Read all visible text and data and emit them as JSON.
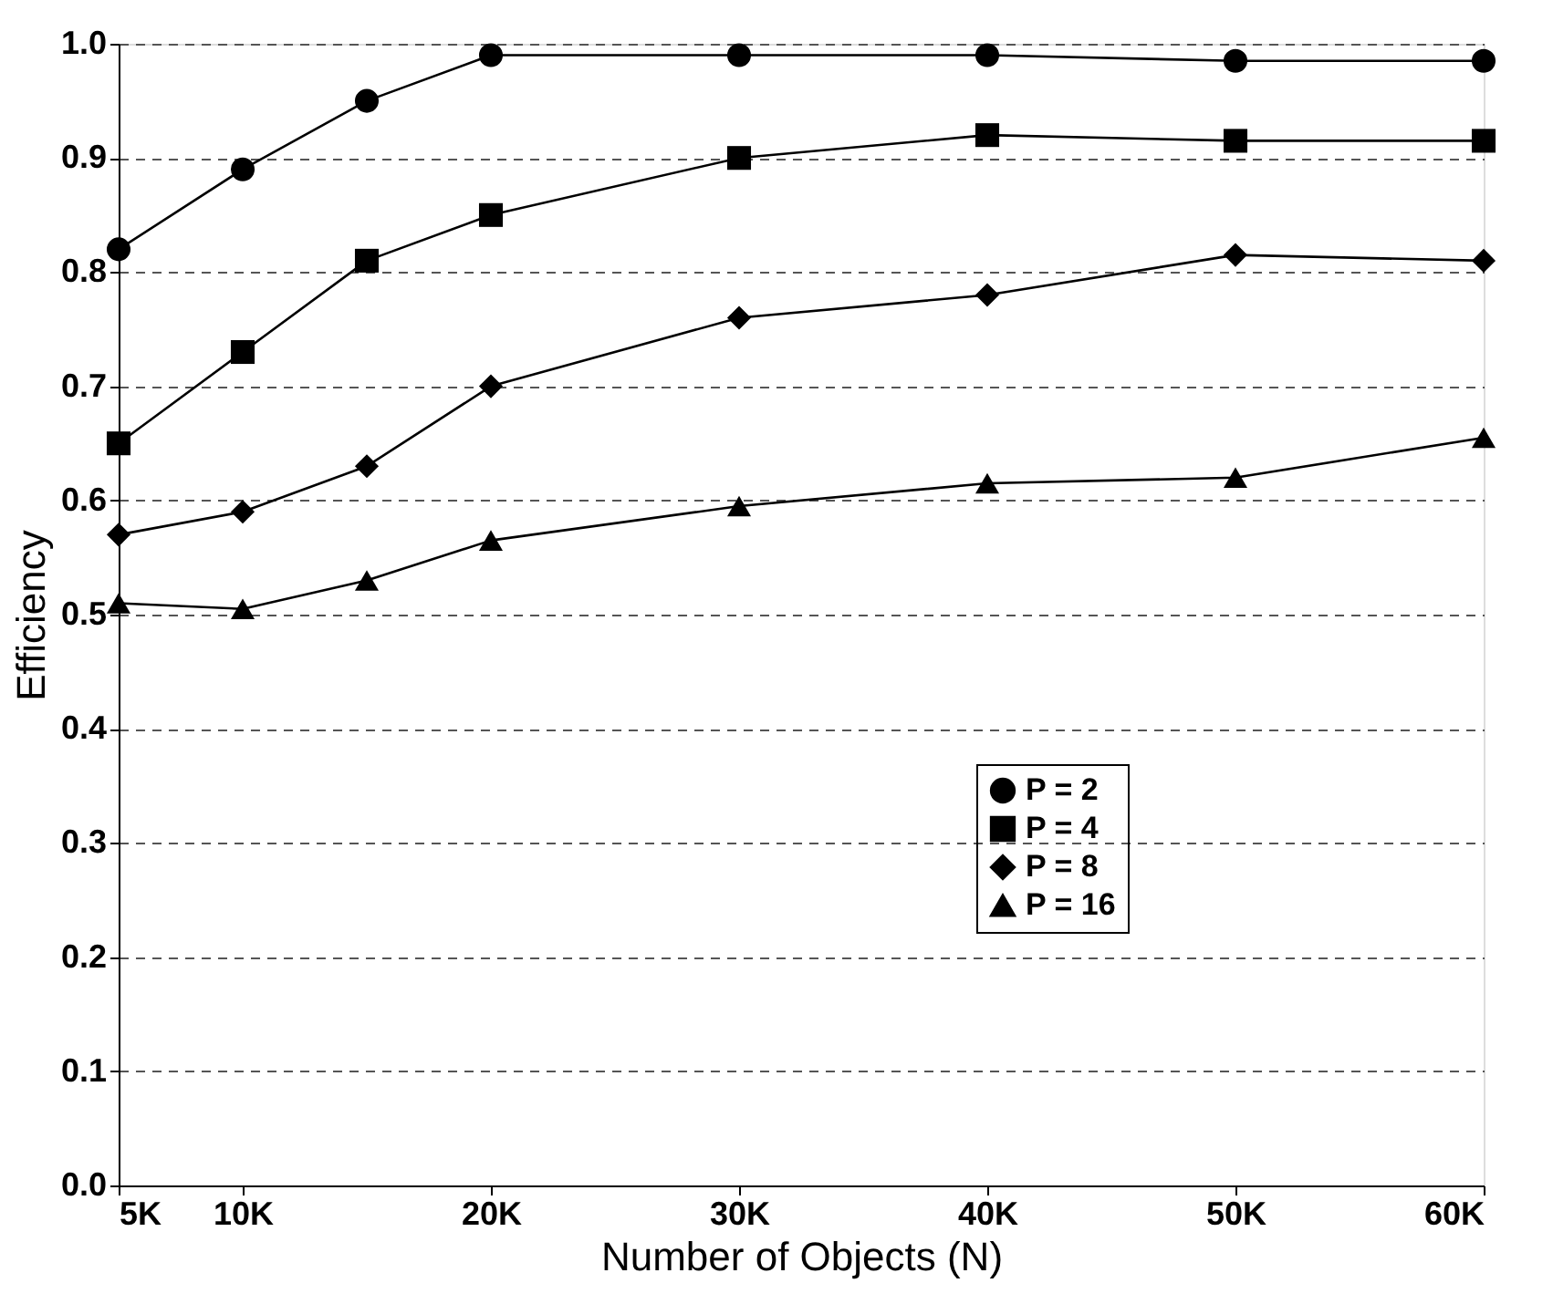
{
  "chart_data": {
    "type": "line",
    "xlabel": "Number of Objects (N)",
    "ylabel": "Efficiency",
    "x": [
      5000,
      10000,
      15000,
      20000,
      30000,
      40000,
      50000,
      60000
    ],
    "series": [
      {
        "name": "P = 2",
        "color": "#000000",
        "marker": "circle",
        "values": [
          0.82,
          0.89,
          0.95,
          0.99,
          0.99,
          0.99,
          0.985,
          0.985
        ]
      },
      {
        "name": "P = 4",
        "color": "#000000",
        "marker": "square",
        "values": [
          0.65,
          0.73,
          0.81,
          0.85,
          0.9,
          0.92,
          0.915,
          0.915
        ]
      },
      {
        "name": "P = 8",
        "color": "#000000",
        "marker": "diamond",
        "values": [
          0.57,
          0.59,
          0.63,
          0.7,
          0.76,
          0.78,
          0.815,
          0.81
        ]
      },
      {
        "name": "P = 16",
        "color": "#000000",
        "marker": "triangle",
        "values": [
          0.51,
          0.505,
          0.53,
          0.565,
          0.595,
          0.615,
          0.62,
          0.655
        ]
      }
    ],
    "xlim": [
      5000,
      60000
    ],
    "xticks": [
      {
        "value": 5000,
        "label": "5K"
      },
      {
        "value": 10000,
        "label": "10K"
      },
      {
        "value": 20000,
        "label": "20K"
      },
      {
        "value": 30000,
        "label": "30K"
      },
      {
        "value": 40000,
        "label": "40K"
      },
      {
        "value": 50000,
        "label": "50K"
      },
      {
        "value": 60000,
        "label": "60K"
      }
    ],
    "ylim": [
      0,
      1
    ],
    "yticks": [
      {
        "value": 0,
        "label": "0.0"
      },
      {
        "value": 0.1,
        "label": "0.1"
      },
      {
        "value": 0.2,
        "label": "0.2"
      },
      {
        "value": 0.3,
        "label": "0.3"
      },
      {
        "value": 0.4,
        "label": "0.4"
      },
      {
        "value": 0.5,
        "label": "0.5"
      },
      {
        "value": 0.6,
        "label": "0.6"
      },
      {
        "value": 0.7,
        "label": "0.7"
      },
      {
        "value": 0.8,
        "label": "0.8"
      },
      {
        "value": 0.9,
        "label": "0.9"
      },
      {
        "value": 1,
        "label": "1.0"
      }
    ],
    "grid": "y",
    "legend": "right",
    "line_style": "solid"
  }
}
